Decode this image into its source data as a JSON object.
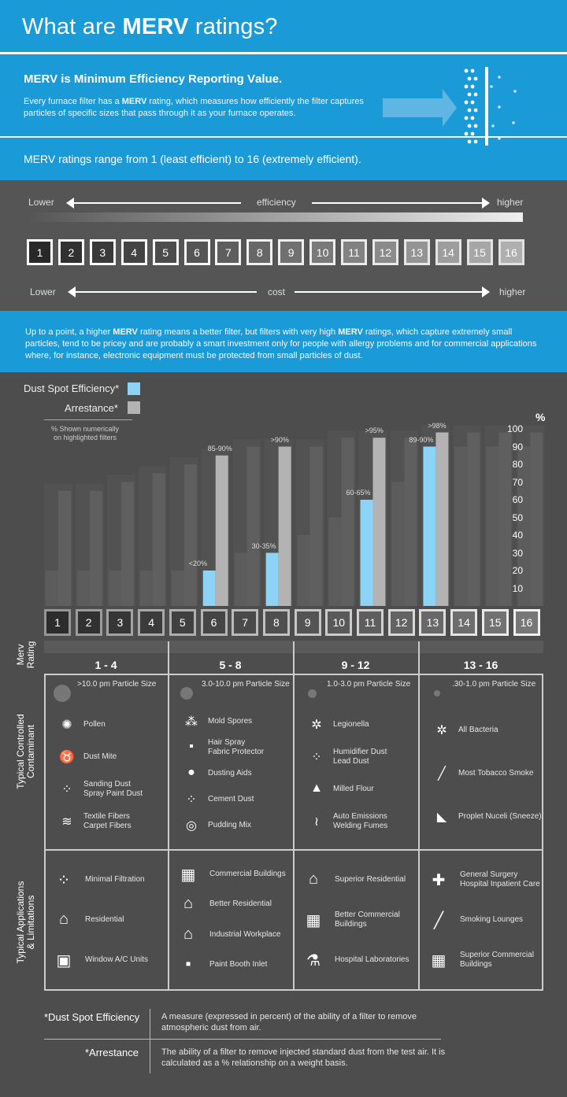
{
  "header": {
    "title_pre": "What are ",
    "title_bold": "MERV",
    "title_post": " ratings?"
  },
  "intro": {
    "title_parts": [
      "M",
      "ERV is ",
      "M",
      "inimum ",
      "E",
      "fficiency ",
      "R",
      "eporting ",
      "V",
      "alue."
    ],
    "desc_pre": "Every furnace filter has a ",
    "desc_bold": "MERV",
    "desc_post": " rating, which measures how efficiently the filter captures particles of specific sizes that pass through it as your furnace operates.",
    "range": "MERV ratings range from 1 (least efficient) to 16 (extremely efficient)."
  },
  "scale": {
    "efficiency_low": "Lower",
    "efficiency_label": "efficiency",
    "efficiency_high": "higher",
    "cost_low": "Lower",
    "cost_label": "cost",
    "cost_high": "higher",
    "ratings": [
      "1",
      "2",
      "3",
      "4",
      "5",
      "6",
      "7",
      "8",
      "9",
      "10",
      "11",
      "12",
      "13",
      "14",
      "15",
      "16"
    ]
  },
  "note": {
    "pre": "Up to a point, a higher ",
    "b1": "MERV",
    "mid": " rating means a better filter, but filters with very high ",
    "b2": "MERV",
    "post": " ratings, which capture extremely small particles, tend to be pricey and are probably a smart investment only for people with allergy problems and for commercial applications where, for instance, electronic equipment must be protected from small particles of dust."
  },
  "legend": {
    "dust": "Dust Spot Efficiency*",
    "arrestance": "Arrestance*",
    "note_line1": "% Shown numerically",
    "note_line2": "on highlighted filters",
    "dust_color": "#8dd3f5",
    "arrestance_color": "#b3b3b3"
  },
  "chart_data": {
    "type": "bar",
    "categories": [
      "1",
      "2",
      "3",
      "4",
      "5",
      "6",
      "7",
      "8",
      "9",
      "10",
      "11",
      "12",
      "13",
      "14",
      "15",
      "16"
    ],
    "series": [
      {
        "name": "Dust Spot Efficiency*",
        "values": [
          20,
          20,
          20,
          20,
          20,
          20,
          30,
          30,
          40,
          50,
          60,
          70,
          90,
          90,
          90,
          90
        ],
        "highlight": [
          false,
          false,
          false,
          false,
          false,
          true,
          false,
          true,
          false,
          false,
          true,
          false,
          true,
          false,
          false,
          false
        ]
      },
      {
        "name": "Arrestance*",
        "values": [
          65,
          65,
          70,
          75,
          80,
          85,
          90,
          90,
          90,
          95,
          95,
          95,
          98,
          98,
          98,
          98
        ],
        "highlight": [
          false,
          false,
          false,
          false,
          false,
          true,
          false,
          true,
          false,
          false,
          true,
          false,
          true,
          false,
          false,
          false
        ]
      }
    ],
    "ylabel": "%",
    "ylim": [
      0,
      100
    ],
    "yticks": [
      "10",
      "20",
      "30",
      "40",
      "50",
      "60",
      "70",
      "80",
      "90",
      "100"
    ],
    "annotations": [
      {
        "rating": "6",
        "dust": "<20%",
        "arrestance": "85-90%"
      },
      {
        "rating": "8",
        "dust": "30-35%",
        "arrestance": ">90%"
      },
      {
        "rating": "11",
        "dust": "60-65%",
        "arrestance": ">95%"
      },
      {
        "rating": "13",
        "dust": "89-90%",
        "arrestance": ">98%"
      }
    ]
  },
  "table": {
    "rating_label_1": "Merv",
    "rating_label_2": "Rating",
    "contaminant_label_1": "Typical Controlled",
    "contaminant_label_2": "Contaminant",
    "applications_label_1": "Typical Applications",
    "applications_label_2": "& Limitations",
    "groups": [
      {
        "range": "1 - 4",
        "particle": ">10.0 pm Particle Size",
        "contaminants": [
          {
            "icon": "sun-icon",
            "text": "Pollen"
          },
          {
            "icon": "dust-mite-icon",
            "text": "Dust Mite"
          },
          {
            "icon": "dots-icon",
            "text": "Sanding Dust\nSpray Paint Dust"
          },
          {
            "icon": "fiber-icon",
            "text": "Textile Fibers\nCarpet Fibers"
          }
        ],
        "applications": [
          {
            "icon": "dots-icon",
            "text": "Minimal Filtration"
          },
          {
            "icon": "house-icon",
            "text": "Residential"
          },
          {
            "icon": "window-icon",
            "text": "Window A/C Units"
          }
        ]
      },
      {
        "range": "5 - 8",
        "particle": "3.0-10.0 pm Particle Size",
        "contaminants": [
          {
            "icon": "spores-icon",
            "text": "Mold Spores"
          },
          {
            "icon": "spray-icon",
            "text": "Hair Spray\nFabric Protector"
          },
          {
            "icon": "circle-icon",
            "text": "Dusting Aids"
          },
          {
            "icon": "dots-icon",
            "text": "Cement Dust"
          },
          {
            "icon": "swirl-icon",
            "text": "Pudding Mix"
          }
        ],
        "applications": [
          {
            "icon": "building-icon",
            "text": "Commercial Buildings"
          },
          {
            "icon": "house-icon",
            "text": "Better Residential"
          },
          {
            "icon": "factory-icon",
            "text": "Industrial Workplace"
          },
          {
            "icon": "spray-icon",
            "text": "Paint Booth Inlet"
          }
        ]
      },
      {
        "range": "9 - 12",
        "particle": "1.0-3.0 pm Particle Size",
        "contaminants": [
          {
            "icon": "bacteria-icon",
            "text": "Legionella"
          },
          {
            "icon": "dots-icon",
            "text": "Humidifier Dust\nLead Dust"
          },
          {
            "icon": "mound-icon",
            "text": "Milled Flour"
          },
          {
            "icon": "fumes-icon",
            "text": "Auto Emissions\nWelding Fumes"
          }
        ],
        "applications": [
          {
            "icon": "house-icon",
            "text": "Superior Residential"
          },
          {
            "icon": "building-icon",
            "text": "Better Commercial\nBuildings"
          },
          {
            "icon": "test-tube-icon",
            "text": "Hospital Laboratories"
          }
        ]
      },
      {
        "range": "13 - 16",
        "particle": ".30-1.0 pm Particle Size",
        "contaminants": [
          {
            "icon": "bacteria-icon",
            "text": "All Bacteria"
          },
          {
            "icon": "cigarette-icon",
            "text": "Most Tobacco Smoke"
          },
          {
            "icon": "sneeze-icon",
            "text": "Proplet Nuceli (Sneeze)"
          }
        ],
        "applications": [
          {
            "icon": "cross-icon",
            "text": "General Surgery\nHospital Inpatient Care"
          },
          {
            "icon": "cigarette-icon",
            "text": "Smoking Lounges"
          },
          {
            "icon": "building-icon",
            "text": "Superior Commercial\nBuildings"
          }
        ]
      }
    ]
  },
  "definitions": [
    {
      "term": "*Dust Spot Efficiency",
      "text": "A measure (expressed in percent) of the ability of a filter to remove atmospheric dust from air."
    },
    {
      "term": "*Arrestance",
      "text": "The ability of a filter to remove injected standard dust from the test air. It is calculated as a % relationship on a weight basis."
    }
  ]
}
